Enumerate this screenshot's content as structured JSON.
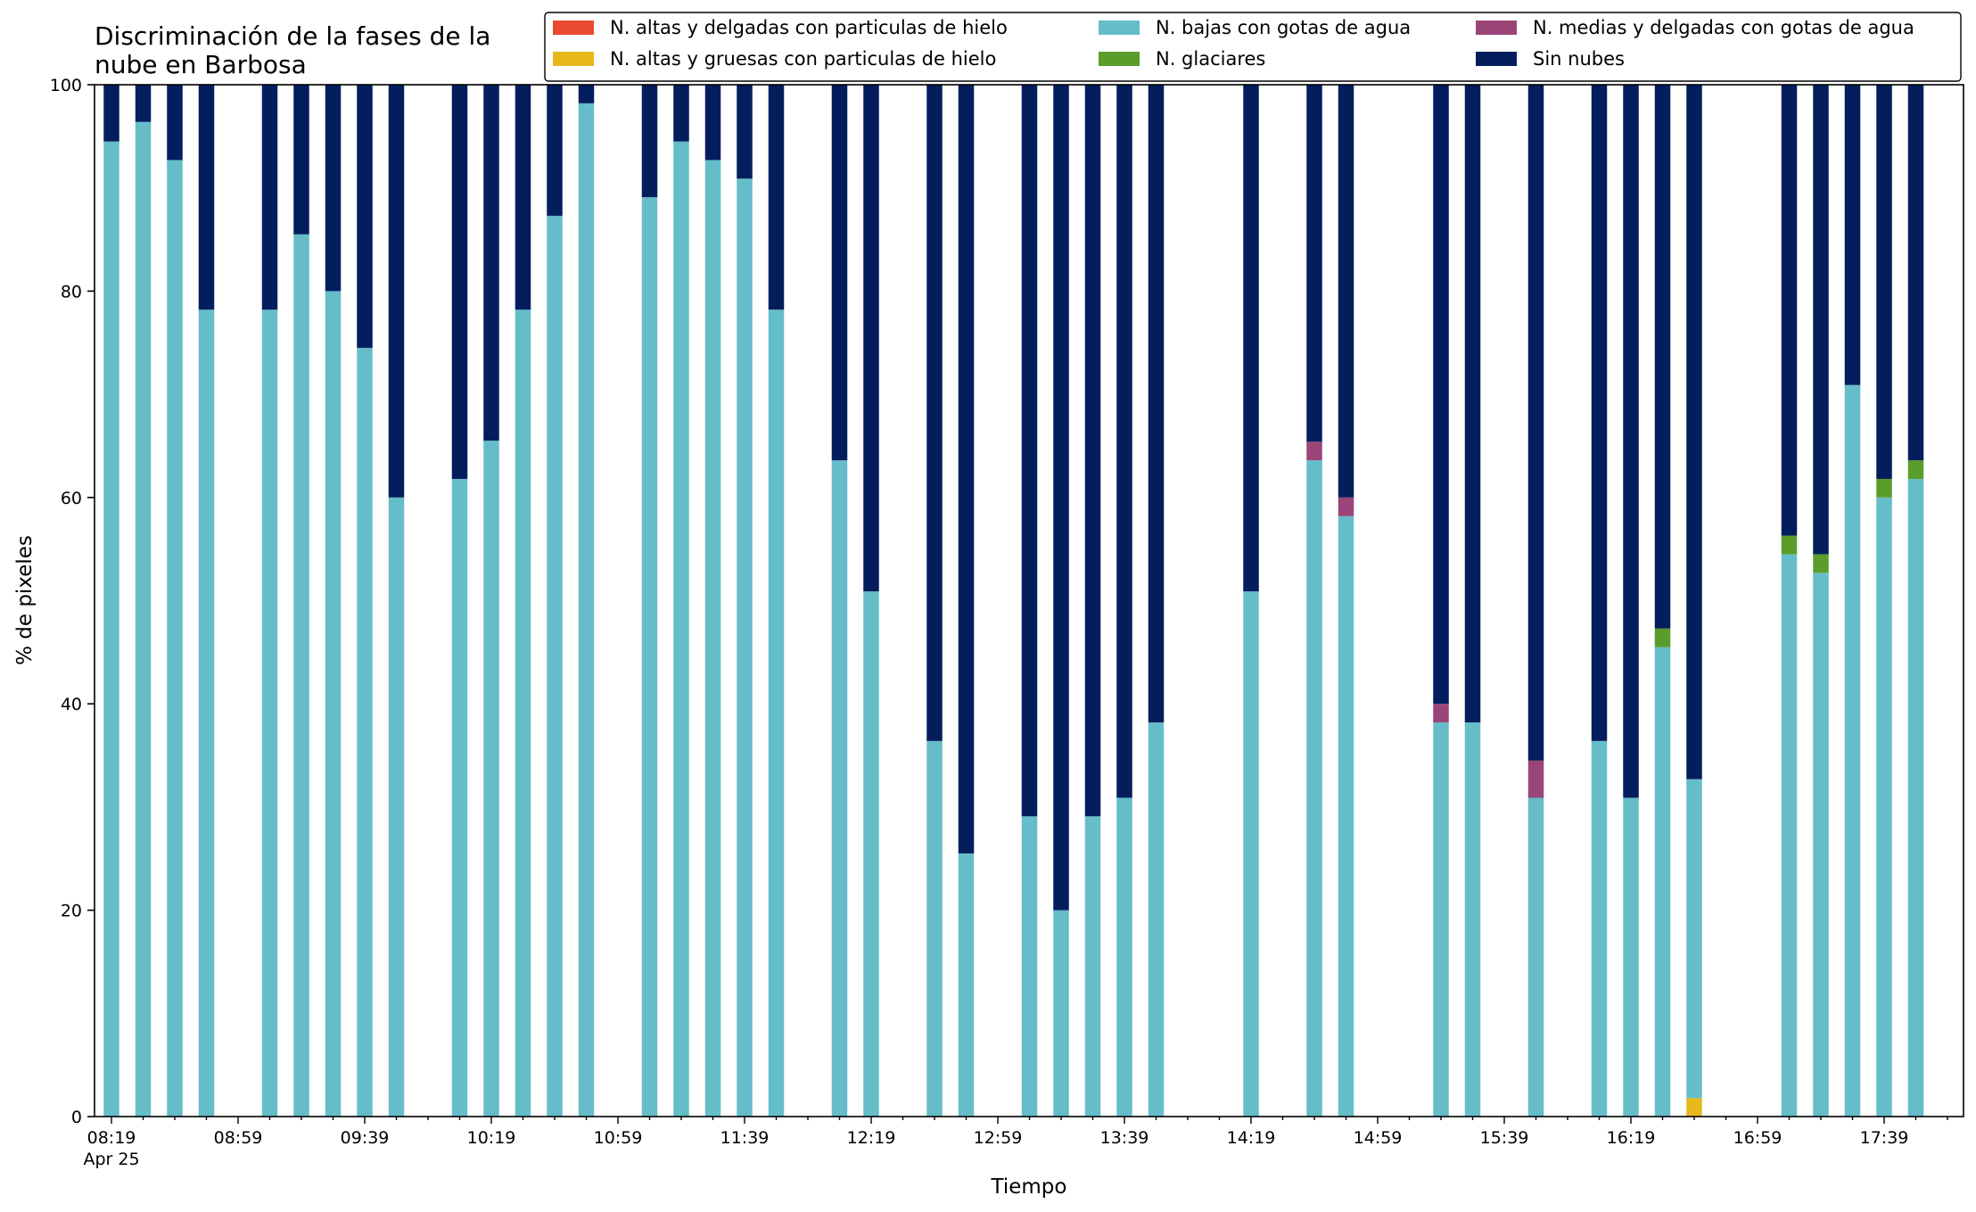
{
  "chart_data": {
    "type": "bar",
    "stacked": true,
    "title": "Discriminación de la fases de la\nnube en Barbosa",
    "xlabel": "Tiempo",
    "ylabel": "% de pixeles",
    "ylim": [
      0,
      100
    ],
    "yticks": [
      0,
      20,
      40,
      60,
      80,
      100
    ],
    "x_start": "08:19",
    "x_end": "17:59",
    "x_slot_minutes": 10,
    "x_ticks": [
      "08:19",
      "08:59",
      "09:39",
      "10:19",
      "10:59",
      "11:39",
      "12:19",
      "12:59",
      "13:39",
      "14:19",
      "14:59",
      "15:39",
      "16:19",
      "16:59",
      "17:39"
    ],
    "x_date_label": "Apr 25",
    "grid": false,
    "legend_position": "top-right",
    "series": [
      {
        "name": "N. altas y delgadas con particulas de hielo",
        "color": "#e84a30"
      },
      {
        "name": "N. altas y gruesas con particulas de hielo",
        "color": "#e6b81c"
      },
      {
        "name": "N. bajas con gotas de agua",
        "color": "#65bdc9"
      },
      {
        "name": "N. glaciares",
        "color": "#5a9d2b"
      },
      {
        "name": "N. medias y delgadas con gotas de agua",
        "color": "#9b4478"
      },
      {
        "name": "Sin nubes",
        "color": "#041e5d"
      }
    ],
    "bars": [
      {
        "time": "08:19",
        "values": [
          0,
          0,
          94.5,
          0,
          0,
          5.5
        ]
      },
      {
        "time": "08:29",
        "values": [
          0,
          0,
          96.4,
          0,
          0,
          3.6
        ]
      },
      {
        "time": "08:39",
        "values": [
          0,
          0,
          92.7,
          0,
          0,
          7.3
        ]
      },
      {
        "time": "08:49",
        "values": [
          0,
          0,
          78.2,
          0,
          0,
          21.8
        ]
      },
      {
        "time": "09:09",
        "values": [
          0,
          0,
          78.2,
          0,
          0,
          21.8
        ]
      },
      {
        "time": "09:19",
        "values": [
          0,
          0,
          85.5,
          0,
          0,
          14.5
        ]
      },
      {
        "time": "09:29",
        "values": [
          0,
          0,
          80.0,
          0,
          0,
          20.0
        ]
      },
      {
        "time": "09:39",
        "values": [
          0,
          0,
          74.5,
          0,
          0,
          25.5
        ]
      },
      {
        "time": "09:49",
        "values": [
          0,
          0,
          60.0,
          0,
          0,
          40.0
        ]
      },
      {
        "time": "10:09",
        "values": [
          0,
          0,
          61.8,
          0,
          0,
          38.2
        ]
      },
      {
        "time": "10:19",
        "values": [
          0,
          0,
          65.5,
          0,
          0,
          34.5
        ]
      },
      {
        "time": "10:29",
        "values": [
          0,
          0,
          78.2,
          0,
          0,
          21.8
        ]
      },
      {
        "time": "10:39",
        "values": [
          0,
          0,
          87.3,
          0,
          0,
          12.7
        ]
      },
      {
        "time": "10:49",
        "values": [
          0,
          0,
          98.2,
          0,
          0,
          1.8
        ]
      },
      {
        "time": "11:09",
        "values": [
          0,
          0,
          89.1,
          0,
          0,
          10.9
        ]
      },
      {
        "time": "11:19",
        "values": [
          0,
          0,
          94.5,
          0,
          0,
          5.5
        ]
      },
      {
        "time": "11:29",
        "values": [
          0,
          0,
          92.7,
          0,
          0,
          7.3
        ]
      },
      {
        "time": "11:39",
        "values": [
          0,
          0,
          90.9,
          0,
          0,
          9.1
        ]
      },
      {
        "time": "11:49",
        "values": [
          0,
          0,
          78.2,
          0,
          0,
          21.8
        ]
      },
      {
        "time": "12:09",
        "values": [
          0,
          0,
          63.6,
          0,
          0,
          36.4
        ]
      },
      {
        "time": "12:19",
        "values": [
          0,
          0,
          50.9,
          0,
          0,
          49.1
        ]
      },
      {
        "time": "12:39",
        "values": [
          0,
          0,
          36.4,
          0,
          0,
          63.6
        ]
      },
      {
        "time": "12:49",
        "values": [
          0,
          0,
          25.5,
          0,
          0,
          74.5
        ]
      },
      {
        "time": "13:09",
        "values": [
          0,
          0,
          29.1,
          0,
          0,
          70.9
        ]
      },
      {
        "time": "13:19",
        "values": [
          0,
          0,
          20.0,
          0,
          0,
          80.0
        ]
      },
      {
        "time": "13:29",
        "values": [
          0,
          0,
          29.1,
          0,
          0,
          70.9
        ]
      },
      {
        "time": "13:39",
        "values": [
          0,
          0,
          30.9,
          0,
          0,
          69.1
        ]
      },
      {
        "time": "13:49",
        "values": [
          0,
          0,
          38.2,
          0,
          0,
          61.8
        ]
      },
      {
        "time": "14:19",
        "values": [
          0,
          0,
          50.9,
          0,
          0,
          49.1
        ]
      },
      {
        "time": "14:39",
        "values": [
          0,
          0,
          63.6,
          0,
          1.8,
          34.6
        ]
      },
      {
        "time": "14:49",
        "values": [
          0,
          0,
          58.2,
          0,
          1.8,
          40.0
        ]
      },
      {
        "time": "15:19",
        "values": [
          0,
          0,
          38.2,
          0,
          1.8,
          60.0
        ]
      },
      {
        "time": "15:29",
        "values": [
          0,
          0,
          38.2,
          0,
          0,
          61.8
        ]
      },
      {
        "time": "15:49",
        "values": [
          0,
          0,
          30.9,
          0,
          3.6,
          65.5
        ]
      },
      {
        "time": "16:09",
        "values": [
          0,
          0,
          36.4,
          0,
          0,
          63.6
        ]
      },
      {
        "time": "16:19",
        "values": [
          0,
          0,
          30.9,
          0,
          0,
          69.1
        ]
      },
      {
        "time": "16:29",
        "values": [
          0,
          0,
          45.5,
          1.8,
          0,
          52.7
        ]
      },
      {
        "time": "16:39",
        "values": [
          0,
          1.8,
          30.9,
          0,
          0,
          67.3
        ]
      },
      {
        "time": "17:09",
        "values": [
          0,
          0,
          54.5,
          1.8,
          0,
          43.7
        ]
      },
      {
        "time": "17:19",
        "values": [
          0,
          0,
          52.7,
          1.8,
          0,
          45.5
        ]
      },
      {
        "time": "17:29",
        "values": [
          0,
          0,
          70.9,
          0,
          0,
          29.1
        ]
      },
      {
        "time": "17:39",
        "values": [
          0,
          0,
          60.0,
          1.8,
          0,
          38.2
        ]
      },
      {
        "time": "17:49",
        "values": [
          0,
          0,
          61.8,
          1.8,
          0,
          36.4
        ]
      }
    ]
  }
}
